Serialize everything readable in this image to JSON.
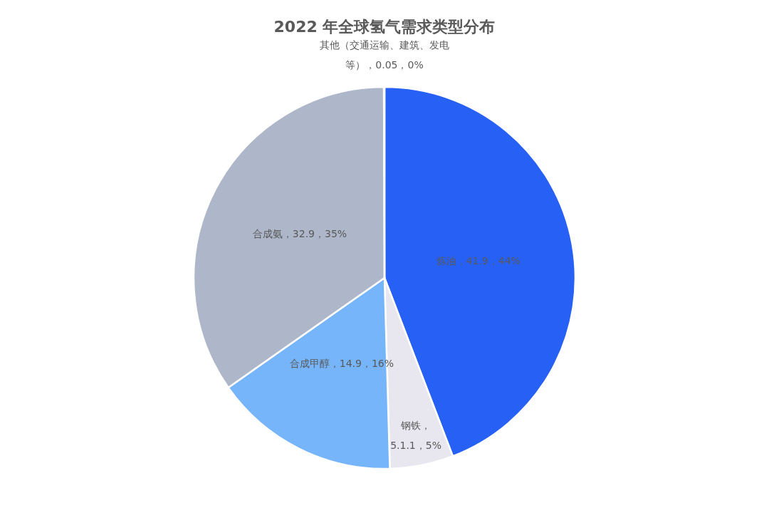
{
  "chart_data": {
    "type": "pie",
    "title": "2022 年全球氢气需求类型分布",
    "categories": [
      "炼油",
      "钢铁",
      "合成甲醇",
      "合成氨",
      "其他（交通运输、建筑、发电等）"
    ],
    "values": [
      41.9,
      5.1,
      14.9,
      32.9,
      0.05
    ],
    "value_labels": [
      "，41.9，44%",
      "，\n5.1.1，5%",
      "，14.9，16%",
      "，32.9，35%",
      "，0.05，0%"
    ],
    "colors": [
      "#2660f5",
      "#e8e6ef",
      "#77b5fb",
      "#adb7c9",
      "#5b6f95"
    ]
  }
}
